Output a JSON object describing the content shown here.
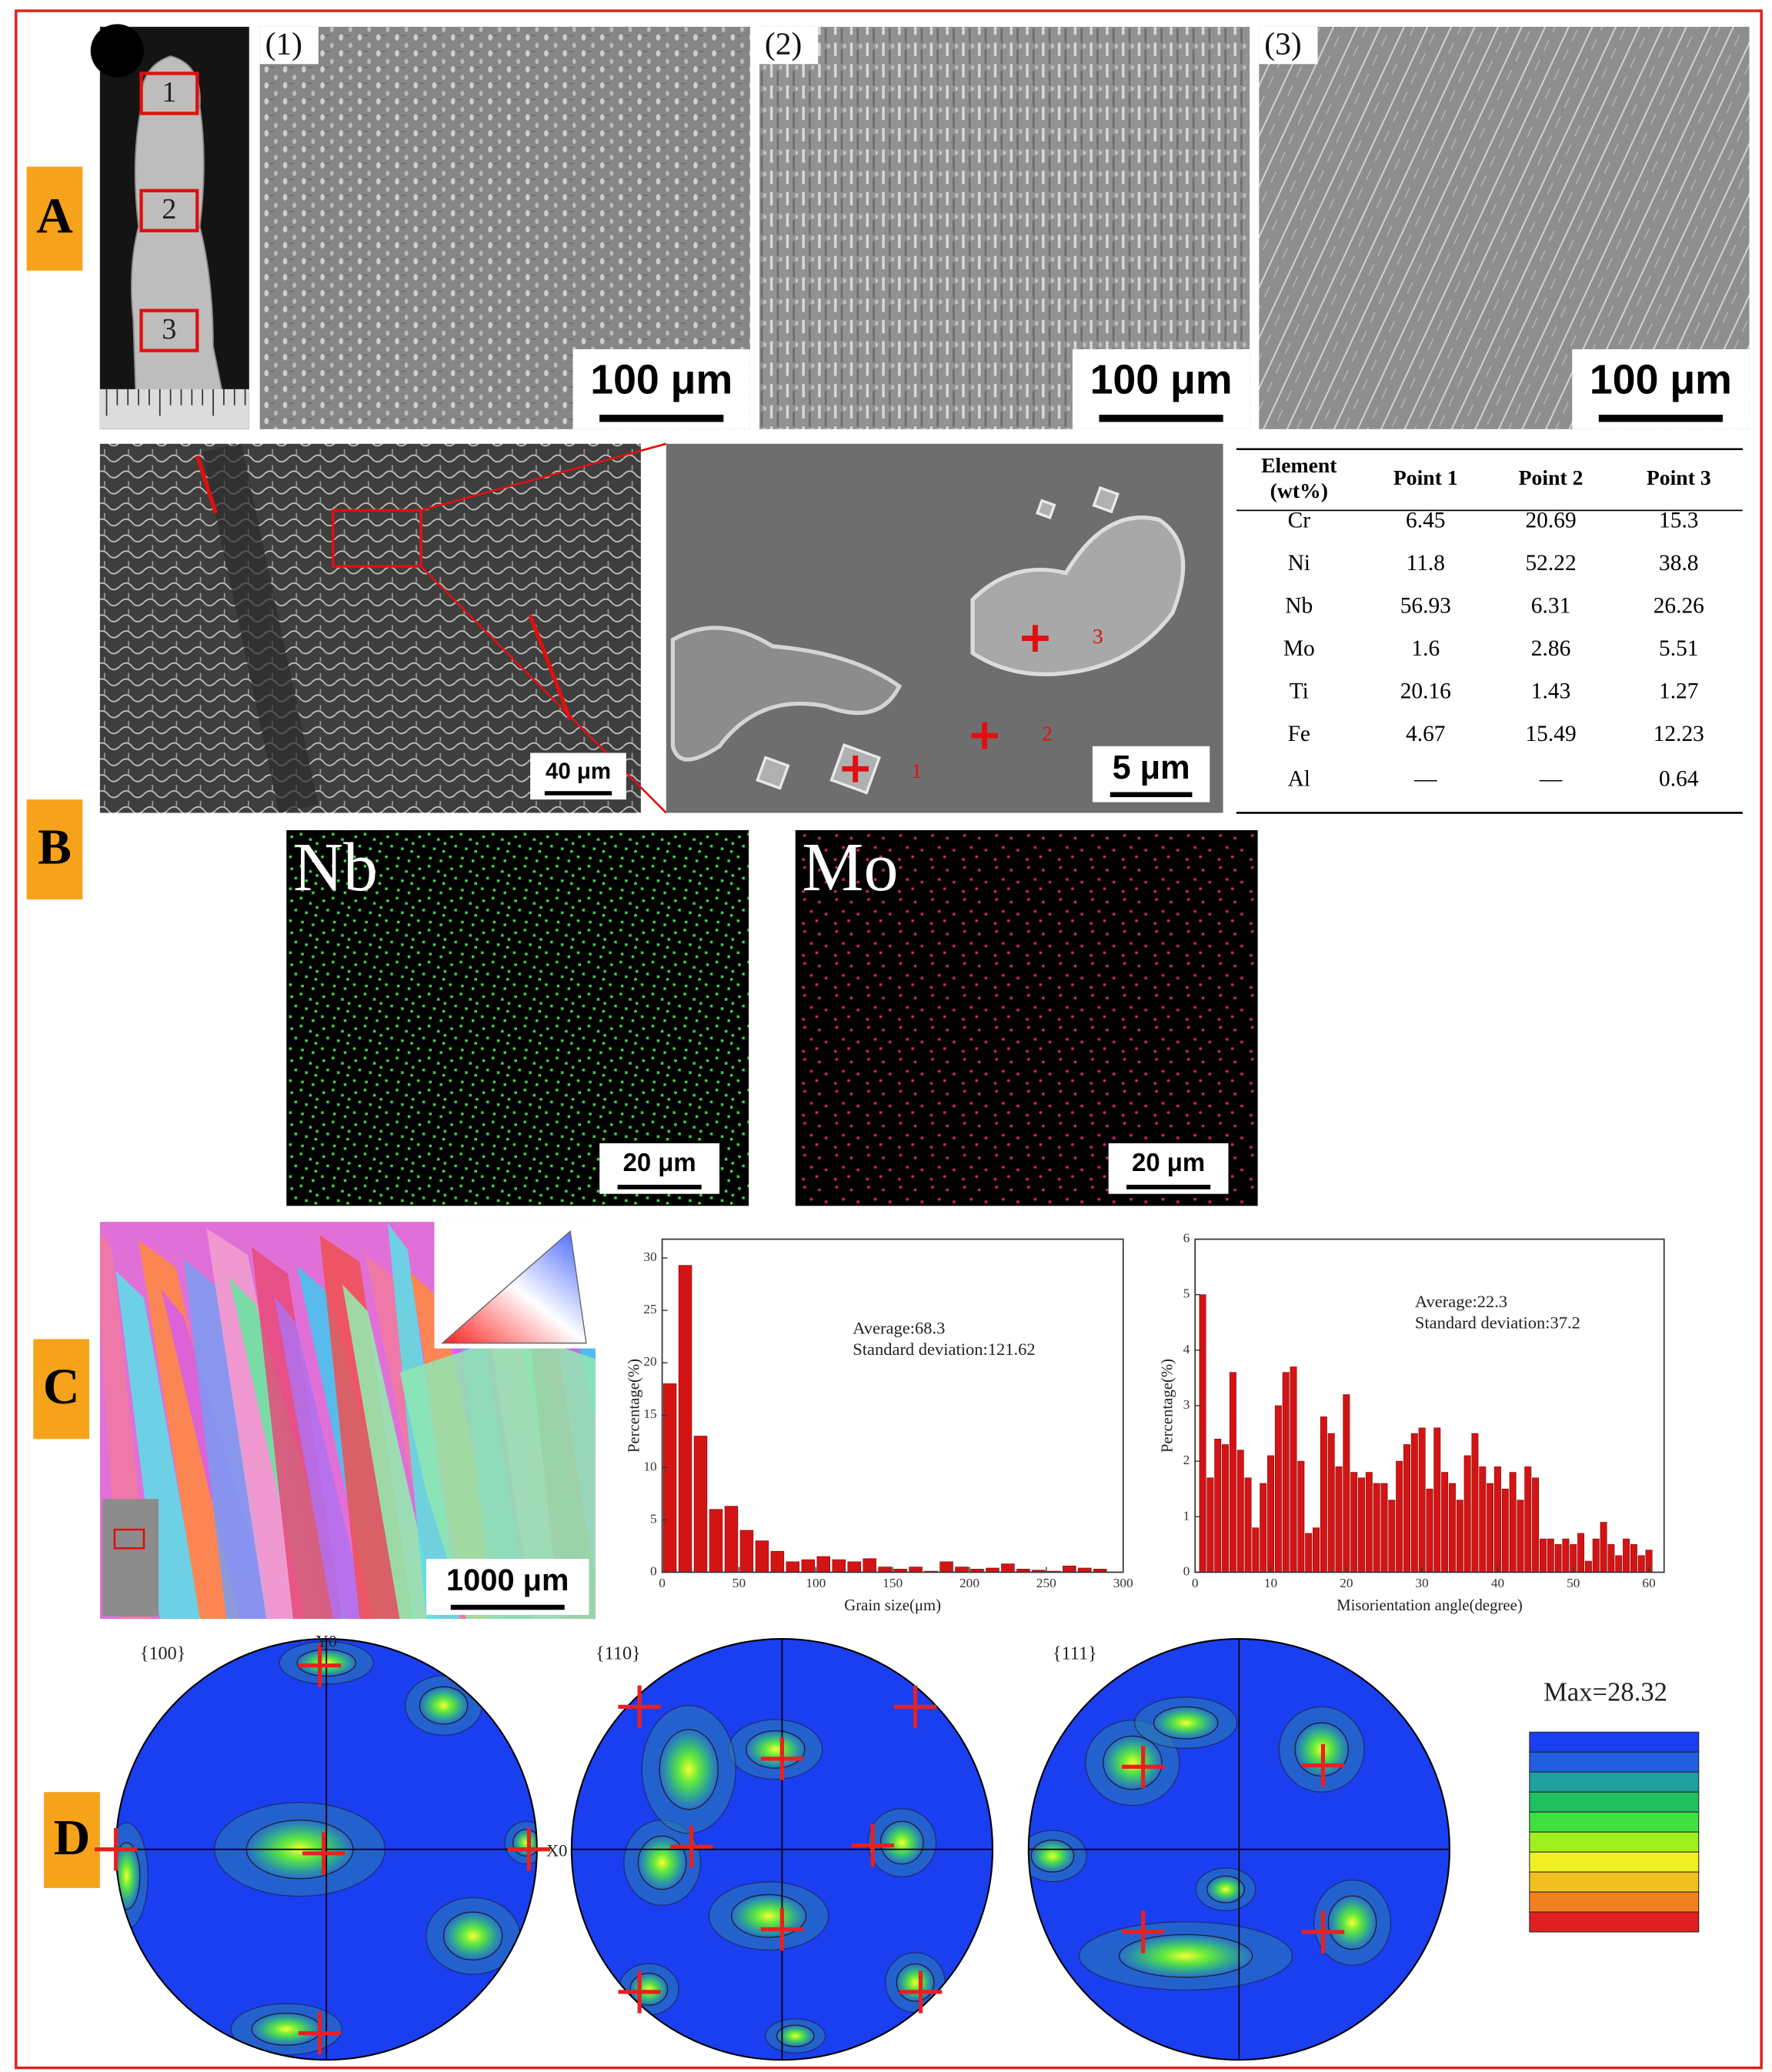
{
  "panel_labels": [
    "A",
    "B",
    "C",
    "D"
  ],
  "panel_a": {
    "sample_markers": [
      "1",
      "2",
      "3"
    ],
    "micrographs": [
      {
        "label": "(1)",
        "scale_bar": "100 μm"
      },
      {
        "label": "(2)",
        "scale_bar": "100 μm"
      },
      {
        "label": "(3)",
        "scale_bar": "100 μm"
      }
    ]
  },
  "panel_b": {
    "sem_scale_bar": "40 μm",
    "zoom_scale_bar": "5 μm",
    "point_labels": [
      "1",
      "2",
      "3"
    ],
    "table": {
      "header": [
        "Element (wt%)",
        "Point 1",
        "Point 2",
        "Point 3"
      ],
      "rows": [
        [
          "Cr",
          "6.45",
          "20.69",
          "15.3"
        ],
        [
          "Ni",
          "11.8",
          "52.22",
          "38.8"
        ],
        [
          "Nb",
          "56.93",
          "6.31",
          "26.26"
        ],
        [
          "Mo",
          "1.6",
          "2.86",
          "5.51"
        ],
        [
          "Ti",
          "20.16",
          "1.43",
          "1.27"
        ],
        [
          "Fe",
          "4.67",
          "15.49",
          "12.23"
        ],
        [
          "Al",
          "—",
          "—",
          "0.64"
        ]
      ]
    },
    "maps": [
      {
        "element": "Nb",
        "scale_bar": "20 μm"
      },
      {
        "element": "Mo",
        "scale_bar": "20 μm"
      }
    ]
  },
  "panel_c": {
    "ebsd_scale_bar": "1000 μm"
  },
  "chart_data": [
    {
      "type": "histogram",
      "xlabel": "Grain size(μm)",
      "ylabel": "Percentage(%)",
      "annotations": [
        "Average:68.3",
        "Standard deviation:121.62"
      ],
      "color": "#d41414",
      "bins": [
        0,
        10,
        20,
        30,
        40,
        50,
        60,
        70,
        80,
        90,
        100,
        110,
        120,
        130,
        140,
        150,
        160,
        170,
        180,
        190,
        200,
        210,
        220,
        230,
        240,
        250,
        260,
        270,
        280,
        290,
        300
      ],
      "values": [
        18,
        29.3,
        13,
        6,
        6.3,
        4,
        3,
        2,
        1,
        1.2,
        1.5,
        1.2,
        1,
        1.3,
        0.5,
        0.3,
        0.5,
        0.1,
        1,
        0.5,
        0.3,
        0.4,
        0.8,
        0.3,
        0.2,
        0.1,
        0.6,
        0.4,
        0.3,
        0
      ],
      "xlim": [
        0,
        300
      ],
      "ylim": [
        0,
        31.8
      ],
      "xticks": [
        0,
        50,
        100,
        150,
        200,
        250,
        300
      ],
      "yticks": [
        0,
        5,
        10,
        15,
        20,
        25,
        30
      ]
    },
    {
      "type": "histogram",
      "xlabel": "Misorientation angle(degree)",
      "ylabel": "Percentage(%)",
      "annotations": [
        "Average:22.3",
        "Standard deviation:37.2"
      ],
      "color": "#d41414",
      "bins": [
        0.5,
        1.5,
        2.5,
        3.5,
        4.5,
        5.5,
        6.5,
        7.5,
        8.5,
        9.5,
        10.5,
        11.5,
        12.5,
        13.5,
        14.5,
        15.5,
        16.5,
        17.5,
        18.5,
        19.5,
        20.5,
        21.5,
        22.5,
        23.5,
        24.5,
        25.5,
        26.5,
        27.5,
        28.5,
        29.5,
        30.5,
        31.5,
        32.5,
        33.5,
        34.5,
        35.5,
        36.5,
        37.5,
        38.5,
        39.5,
        40.5,
        41.5,
        42.5,
        43.5,
        44.5,
        45.5,
        46.5,
        47.5,
        48.5,
        49.5,
        50.5,
        51.5,
        52.5,
        53.5,
        54.5,
        55.5,
        56.5,
        57.5,
        58.5,
        59.5,
        60.5
      ],
      "values": [
        5,
        1.7,
        2.4,
        2.3,
        3.6,
        2.2,
        1.7,
        0.8,
        1.6,
        2.1,
        3,
        3.6,
        3.7,
        2,
        0.7,
        0.8,
        2.8,
        2.5,
        1.9,
        3.2,
        1.8,
        1.7,
        1.8,
        1.6,
        1.6,
        1.3,
        2,
        2.3,
        2.5,
        2.6,
        1.5,
        2.6,
        1.8,
        1.6,
        1.3,
        2.1,
        2.5,
        1.9,
        1.6,
        1.9,
        1.5,
        1.8,
        1.3,
        1.9,
        1.7,
        0.6,
        0.6,
        0.5,
        0.6,
        0.5,
        0.7,
        0.2,
        0.6,
        0.9,
        0.5,
        0.3,
        0.6,
        0.5,
        0.3,
        0.4
      ],
      "xlim": [
        0,
        62
      ],
      "ylim": [
        0,
        6
      ],
      "xticks": [
        0,
        10,
        20,
        30,
        40,
        50,
        60
      ],
      "yticks": [
        0,
        1,
        2,
        3,
        4,
        5,
        6
      ]
    }
  ],
  "panel_d": {
    "pole_figures": [
      {
        "label": "{100}",
        "axis_labels": [
          "Y0",
          "X0"
        ]
      },
      {
        "label": "{110}"
      },
      {
        "label": "{111}"
      }
    ],
    "max_label": "Max=28.32"
  }
}
